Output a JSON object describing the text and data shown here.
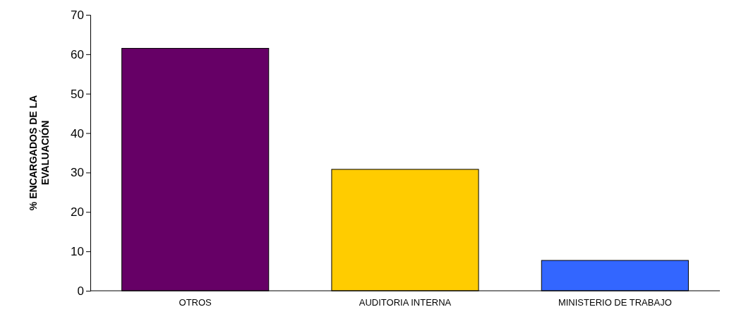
{
  "chart_data": {
    "type": "bar",
    "ylabel": "% ENCARGADOS DE LA EVALUACIÓN",
    "categories": [
      "OTROS",
      "AUDITORIA INTERNA",
      "MINISTERIO DE TRABAJO"
    ],
    "values": [
      61.5,
      30.8,
      7.7
    ],
    "colors": [
      "#660066",
      "#ffcc00",
      "#3366ff"
    ],
    "ylim": [
      0,
      70
    ],
    "yticks": [
      0,
      10,
      20,
      30,
      40,
      50,
      60,
      70
    ],
    "grid": false
  }
}
